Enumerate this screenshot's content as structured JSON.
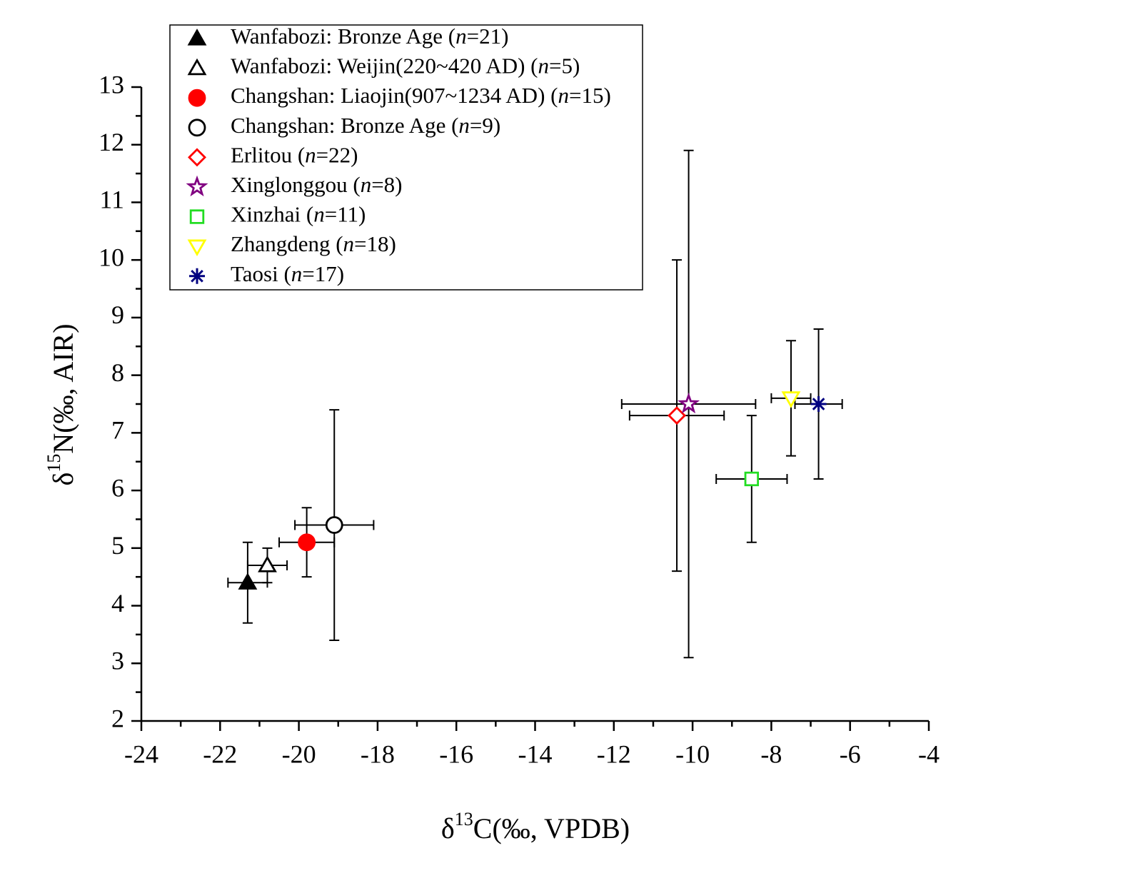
{
  "chart_data": {
    "type": "scatter",
    "x_label": "δ13C(‰, VPDB)",
    "y_label": "δ15N(‰, AIR)",
    "xlim": [
      -24,
      -4
    ],
    "xticks": [
      -24,
      -22,
      -20,
      -18,
      -16,
      -14,
      -12,
      -10,
      -8,
      -6,
      -4
    ],
    "ylim": [
      2,
      13
    ],
    "yticks": [
      2,
      3,
      4,
      5,
      6,
      7,
      8,
      9,
      10,
      11,
      12,
      13
    ],
    "grid": false,
    "series": [
      {
        "name": "Wanfabozi: Bronze Age (n=21)",
        "color": "#000000",
        "marker": "triangle",
        "filled": true,
        "x": [
          -21.3
        ],
        "values": [
          4.4
        ],
        "xerr": [
          0.5
        ],
        "yerr": [
          0.7
        ]
      },
      {
        "name": "Wanfabozi: Weijin(220~420 AD) (n=5)",
        "color": "#000000",
        "marker": "triangle",
        "filled": false,
        "x": [
          -20.8
        ],
        "values": [
          4.7
        ],
        "xerr": [
          0.5
        ],
        "yerr": [
          0.3
        ]
      },
      {
        "name": "Changshan: Liaojin(907~1234 AD) (n=15)",
        "color": "#ff0000",
        "marker": "circle",
        "filled": true,
        "x": [
          -19.8
        ],
        "values": [
          5.1
        ],
        "xerr": [
          0.7
        ],
        "yerr": [
          0.6
        ]
      },
      {
        "name": "Changshan: Bronze Age (n=9)",
        "color": "#000000",
        "marker": "circle",
        "filled": false,
        "x": [
          -19.1
        ],
        "values": [
          5.4
        ],
        "xerr": [
          1.0
        ],
        "yerr": [
          2.0
        ]
      },
      {
        "name": "Erlitou (n=22)",
        "color": "#ff0000",
        "marker": "diamond",
        "filled": false,
        "x": [
          -10.4
        ],
        "values": [
          7.3
        ],
        "xerr": [
          1.2
        ],
        "yerr": [
          2.7
        ]
      },
      {
        "name": "Xinglonggou (n=8)",
        "color": "#800080",
        "marker": "star",
        "filled": false,
        "x": [
          -10.1
        ],
        "values": [
          7.5
        ],
        "xerr": [
          1.7
        ],
        "yerr": [
          4.4
        ]
      },
      {
        "name": "Xinzhai (n=11)",
        "color": "#22dd22",
        "marker": "square",
        "filled": false,
        "x": [
          -8.5
        ],
        "values": [
          6.2
        ],
        "xerr": [
          0.9
        ],
        "yerr": [
          1.1
        ]
      },
      {
        "name": "Zhangdeng (n=18)",
        "color": "#ffff00",
        "marker": "triangle-down",
        "filled": false,
        "x": [
          -7.5
        ],
        "values": [
          7.6
        ],
        "xerr": [
          0.5
        ],
        "yerr": [
          1.0
        ]
      },
      {
        "name": "Taosi (n=17)",
        "color": "#000080",
        "marker": "asterisk",
        "filled": false,
        "x": [
          -6.8
        ],
        "values": [
          7.5
        ],
        "xerr": [
          0.6
        ],
        "yerr": [
          1.3
        ]
      }
    ]
  }
}
